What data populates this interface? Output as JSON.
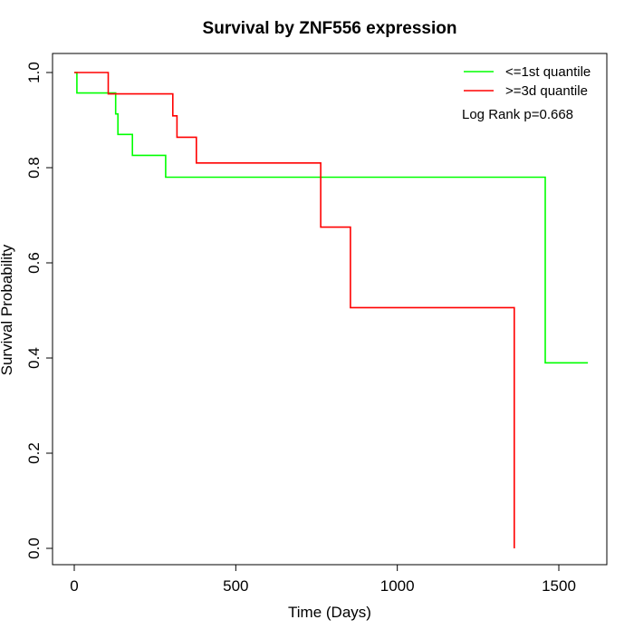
{
  "chart_data": {
    "type": "line",
    "subtype": "kaplan-meier step",
    "title": "Survival by ZNF556 expression",
    "xlabel": "Time (Days)",
    "ylabel": "Survival Probability",
    "xlim": [
      0,
      1600
    ],
    "ylim": [
      0,
      1
    ],
    "x_ticks": [
      0,
      500,
      1000,
      1500
    ],
    "x_tick_labels": [
      "0",
      "500",
      "1000",
      "1500"
    ],
    "y_ticks": [
      0,
      0.2,
      0.4,
      0.6,
      0.8,
      1.0
    ],
    "y_tick_labels": [
      "0.0",
      "0.2",
      "0.4",
      "0.6",
      "0.8",
      "1.0"
    ],
    "grid": false,
    "legend_position": "top-right",
    "series": [
      {
        "name": "<=1st quantile",
        "color": "#00ff00",
        "points": [
          [
            0,
            1.0
          ],
          [
            8,
            1.0
          ],
          [
            8,
            0.957
          ],
          [
            128,
            0.957
          ],
          [
            128,
            0.913
          ],
          [
            135,
            0.913
          ],
          [
            135,
            0.87
          ],
          [
            180,
            0.87
          ],
          [
            180,
            0.826
          ],
          [
            283,
            0.826
          ],
          [
            283,
            0.78
          ],
          [
            1458,
            0.78
          ],
          [
            1458,
            0.39
          ],
          [
            1590,
            0.39
          ]
        ]
      },
      {
        "name": ">=3d quantile",
        "color": "#ff0000",
        "points": [
          [
            0,
            1.0
          ],
          [
            105,
            1.0
          ],
          [
            105,
            0.955
          ],
          [
            305,
            0.955
          ],
          [
            305,
            0.909
          ],
          [
            318,
            0.909
          ],
          [
            318,
            0.864
          ],
          [
            378,
            0.864
          ],
          [
            378,
            0.81
          ],
          [
            763,
            0.81
          ],
          [
            763,
            0.675
          ],
          [
            855,
            0.675
          ],
          [
            855,
            0.506
          ],
          [
            1362,
            0.506
          ],
          [
            1362,
            0.0
          ]
        ]
      }
    ],
    "annotations": [
      "Log Rank p=0.668"
    ]
  }
}
